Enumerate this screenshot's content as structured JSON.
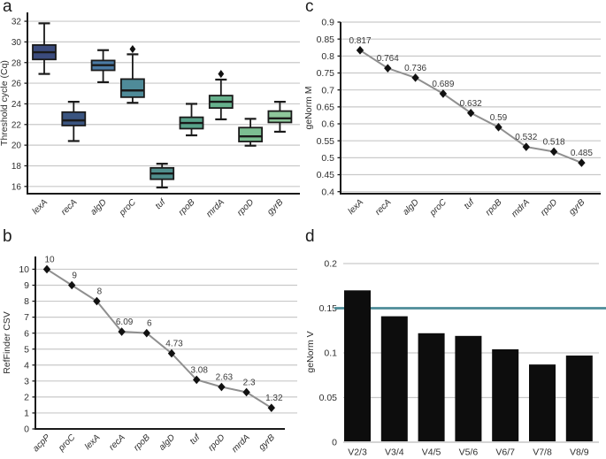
{
  "figure": {
    "panel_labels": {
      "a": "a",
      "b": "b",
      "c": "c",
      "d": "d"
    }
  },
  "theme": {
    "background": "#ffffff",
    "grid_color": "#c9c9c9",
    "axis_color": "#1a1a1a",
    "tick_text_color": "#2e2e2e",
    "series_line_color": "#8f8f8f",
    "marker_color": "#111111",
    "data_label_color": "#3a3a3a"
  },
  "chart_data": [
    {
      "panel": "a",
      "type": "boxplot",
      "title": "",
      "ylabel": "Threshold cycle (Cq)",
      "xlabel": "",
      "ylim": [
        15.3,
        32.86
      ],
      "yticks": [
        16,
        18,
        20,
        22,
        24,
        26,
        28,
        30,
        32
      ],
      "ytick_labels": [
        "16",
        "18",
        "20",
        "22",
        "24",
        "26",
        "28",
        "30",
        "32"
      ],
      "grid": true,
      "categories": [
        "lexA",
        "recA",
        "algD",
        "proC",
        "tuf",
        "rpoB",
        "mrdA",
        "rpoD",
        "gyrB"
      ],
      "boxes": [
        {
          "low": 26.9,
          "q1": 28.3,
          "median": 29.0,
          "q3": 29.7,
          "high": 31.8,
          "outliers": [],
          "color": "#3b4b7d"
        },
        {
          "low": 20.4,
          "q1": 21.9,
          "median": 22.4,
          "q3": 23.2,
          "high": 24.2,
          "outliers": [],
          "color": "#3a5480"
        },
        {
          "low": 26.1,
          "q1": 27.25,
          "median": 27.75,
          "q3": 28.2,
          "high": 29.2,
          "outliers": [],
          "color": "#4b7aa4"
        },
        {
          "low": 24.1,
          "q1": 24.65,
          "median": 25.3,
          "q3": 26.4,
          "high": 28.8,
          "outliers": [
            29.3
          ],
          "color": "#4f8b99"
        },
        {
          "low": 15.9,
          "q1": 16.7,
          "median": 17.25,
          "q3": 17.8,
          "high": 18.2,
          "outliers": [],
          "color": "#4f8e8c"
        },
        {
          "low": 20.95,
          "q1": 21.6,
          "median": 22.15,
          "q3": 22.7,
          "high": 24.0,
          "outliers": [],
          "color": "#58a38a"
        },
        {
          "low": 22.5,
          "q1": 23.6,
          "median": 24.2,
          "q3": 24.8,
          "high": 26.35,
          "outliers": [
            26.9
          ],
          "color": "#67b18d"
        },
        {
          "low": 19.95,
          "q1": 20.35,
          "median": 20.85,
          "q3": 21.7,
          "high": 22.55,
          "outliers": [],
          "color": "#7cbe92"
        },
        {
          "low": 21.3,
          "q1": 22.2,
          "median": 22.6,
          "q3": 23.3,
          "high": 24.2,
          "outliers": [],
          "color": "#8ec79b"
        }
      ]
    },
    {
      "panel": "b",
      "type": "line",
      "title": "",
      "ylabel": "RefFinder CSV",
      "xlabel": "",
      "ylim": [
        0,
        10.8
      ],
      "yticks": [
        0,
        1,
        2,
        3,
        4,
        5,
        6,
        7,
        8,
        9,
        10
      ],
      "ytick_labels": [
        "0",
        "1",
        "2",
        "3",
        "4",
        "5",
        "6",
        "7",
        "8",
        "9",
        "10"
      ],
      "grid": true,
      "categories": [
        "acpP",
        "proC",
        "lexA",
        "recA",
        "rpoB",
        "algD",
        "tuf",
        "rpoD",
        "mrdA",
        "gyrB"
      ],
      "values": [
        10,
        9,
        8,
        6.09,
        6,
        4.73,
        3.08,
        2.63,
        2.3,
        1.32
      ],
      "point_labels": [
        "10",
        "9",
        "8",
        "6.09",
        "6",
        "4.73",
        "3.08",
        "2.63",
        "2.3",
        "1.32"
      ]
    },
    {
      "panel": "c",
      "type": "line",
      "title": "",
      "ylabel": "geNorm M",
      "xlabel": "",
      "ylim": [
        0.394,
        0.9
      ],
      "yticks": [
        0.4,
        0.45,
        0.5,
        0.55,
        0.6,
        0.65,
        0.7,
        0.75,
        0.8,
        0.85,
        0.9
      ],
      "ytick_labels": [
        "0.4",
        "0.45",
        "0.5",
        "0.55",
        "0.6",
        "0.65",
        "0.7",
        "0.75",
        "0.8",
        "0.85",
        "0.9"
      ],
      "grid": true,
      "categories": [
        "lexA",
        "recA",
        "algD",
        "proC",
        "tuf",
        "rpoB",
        "mdrA",
        "rpoD",
        "gyrB"
      ],
      "values": [
        0.817,
        0.764,
        0.736,
        0.689,
        0.632,
        0.59,
        0.532,
        0.518,
        0.485
      ],
      "point_labels": [
        "0.817",
        "0.764",
        "0.736",
        "0.689",
        "0.632",
        "0.59",
        "0.532",
        "0.518",
        "0.485"
      ]
    },
    {
      "panel": "d",
      "type": "bar",
      "title": "",
      "ylabel": "geNorm V",
      "xlabel": "",
      "ylim": [
        0,
        0.202
      ],
      "yticks": [
        0,
        0.05,
        0.1,
        0.15,
        0.2
      ],
      "ytick_labels": [
        "0",
        "0.05",
        "0.1",
        "0.15",
        "0.2"
      ],
      "grid": true,
      "categories": [
        "V2/3",
        "V3/4",
        "V4/5",
        "V5/6",
        "V6/7",
        "V7/8",
        "V8/9"
      ],
      "values": [
        0.17,
        0.141,
        0.122,
        0.119,
        0.104,
        0.087,
        0.097
      ],
      "bar_color": "#0d0d0d",
      "threshold": 0.15,
      "threshold_color": "#4d8c98"
    }
  ]
}
